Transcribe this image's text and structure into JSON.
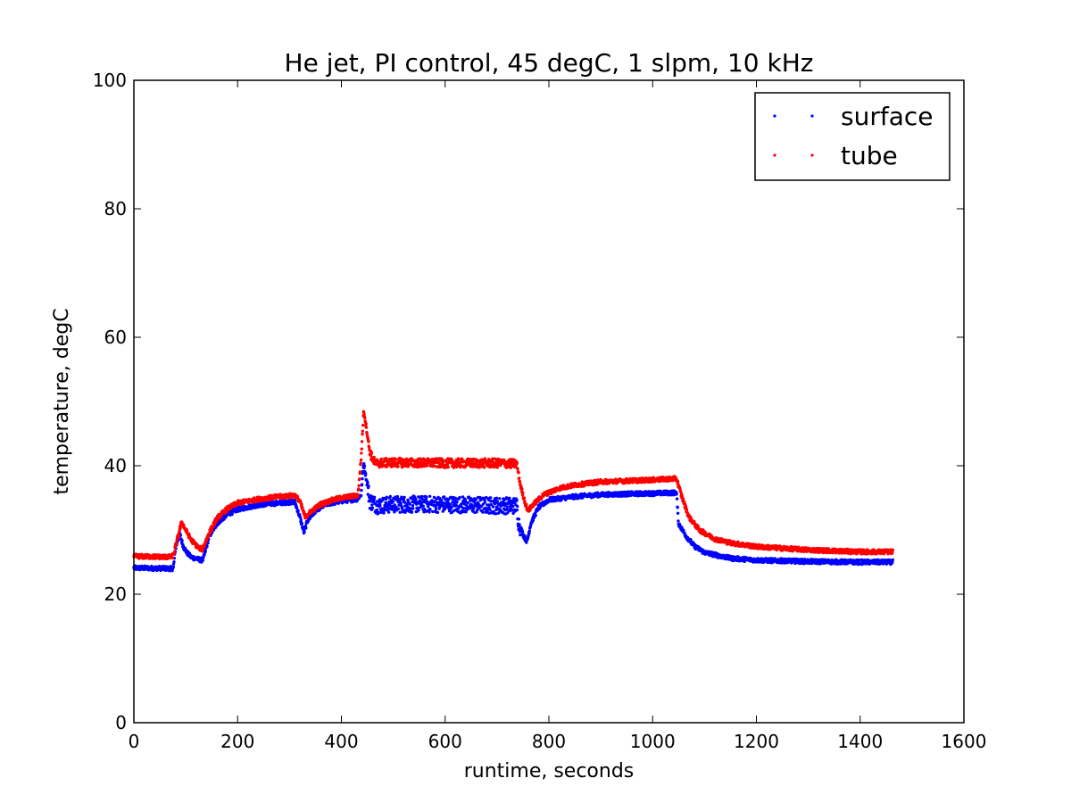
{
  "chart_data": {
    "type": "scatter",
    "title": "He jet, PI control, 45 degC, 1 slpm, 10 kHz",
    "xlabel": "runtime, seconds",
    "ylabel": "temperature, degC",
    "xlim": [
      0,
      1600
    ],
    "ylim": [
      0,
      100
    ],
    "xticks": [
      0,
      200,
      400,
      600,
      800,
      1000,
      1200,
      1400,
      1600
    ],
    "yticks": [
      0,
      20,
      40,
      60,
      80,
      100
    ],
    "grid": false,
    "legend_position": "top-right",
    "series": [
      {
        "name": "surface",
        "color": "#0000ff",
        "knots": [
          [
            0,
            24.1
          ],
          [
            70,
            24.0
          ],
          [
            76,
            24.0
          ],
          [
            80,
            27.0
          ],
          [
            88,
            29.5
          ],
          [
            95,
            27.5
          ],
          [
            102,
            26.5
          ],
          [
            110,
            25.8
          ],
          [
            130,
            25.3
          ],
          [
            134,
            25.5
          ],
          [
            145,
            29.0
          ],
          [
            160,
            31.0
          ],
          [
            180,
            32.4
          ],
          [
            200,
            33.2
          ],
          [
            240,
            33.9
          ],
          [
            280,
            34.2
          ],
          [
            310,
            34.4
          ],
          [
            320,
            32.0
          ],
          [
            328,
            29.6
          ],
          [
            335,
            31.5
          ],
          [
            350,
            33.0
          ],
          [
            370,
            34.0
          ],
          [
            400,
            34.5
          ],
          [
            430,
            34.8
          ],
          [
            438,
            35.5
          ],
          [
            443,
            40.5
          ],
          [
            448,
            38.0
          ],
          [
            455,
            34.5
          ],
          [
            470,
            33.8
          ],
          [
            500,
            34.0
          ],
          [
            600,
            34.0
          ],
          [
            700,
            33.8
          ],
          [
            738,
            33.8
          ],
          [
            742,
            31.0
          ],
          [
            752,
            29.0
          ],
          [
            758,
            28.2
          ],
          [
            765,
            31.0
          ],
          [
            780,
            33.5
          ],
          [
            800,
            34.7
          ],
          [
            850,
            35.2
          ],
          [
            900,
            35.5
          ],
          [
            1000,
            35.7
          ],
          [
            1046,
            35.8
          ],
          [
            1050,
            31.0
          ],
          [
            1065,
            29.0
          ],
          [
            1080,
            27.5
          ],
          [
            1100,
            26.5
          ],
          [
            1150,
            25.6
          ],
          [
            1200,
            25.3
          ],
          [
            1300,
            25.1
          ],
          [
            1400,
            25.0
          ],
          [
            1463,
            25.0
          ]
        ]
      },
      {
        "name": "tube",
        "color": "#ff0000",
        "knots": [
          [
            0,
            25.9
          ],
          [
            70,
            25.8
          ],
          [
            76,
            26.0
          ],
          [
            85,
            29.0
          ],
          [
            92,
            31.2
          ],
          [
            100,
            30.0
          ],
          [
            110,
            28.5
          ],
          [
            125,
            27.2
          ],
          [
            132,
            27.0
          ],
          [
            145,
            29.5
          ],
          [
            160,
            31.8
          ],
          [
            180,
            33.3
          ],
          [
            200,
            34.2
          ],
          [
            240,
            34.8
          ],
          [
            280,
            35.2
          ],
          [
            310,
            35.4
          ],
          [
            320,
            34.5
          ],
          [
            330,
            32.0
          ],
          [
            340,
            32.8
          ],
          [
            360,
            34.0
          ],
          [
            380,
            34.6
          ],
          [
            400,
            35.0
          ],
          [
            432,
            35.4
          ],
          [
            438,
            41.0
          ],
          [
            443,
            48.7
          ],
          [
            448,
            46.0
          ],
          [
            455,
            42.0
          ],
          [
            465,
            40.4
          ],
          [
            500,
            40.5
          ],
          [
            600,
            40.4
          ],
          [
            700,
            40.4
          ],
          [
            738,
            40.3
          ],
          [
            745,
            37.0
          ],
          [
            755,
            34.0
          ],
          [
            760,
            33.0
          ],
          [
            770,
            34.0
          ],
          [
            790,
            35.5
          ],
          [
            820,
            36.5
          ],
          [
            850,
            37.0
          ],
          [
            900,
            37.5
          ],
          [
            1000,
            37.8
          ],
          [
            1046,
            38.0
          ],
          [
            1055,
            35.5
          ],
          [
            1070,
            32.0
          ],
          [
            1090,
            30.0
          ],
          [
            1120,
            28.6
          ],
          [
            1150,
            28.0
          ],
          [
            1200,
            27.4
          ],
          [
            1300,
            26.9
          ],
          [
            1400,
            26.6
          ],
          [
            1463,
            26.6
          ]
        ],
        "noisy_ranges": [
          [
            455,
            740
          ]
        ]
      }
    ]
  }
}
